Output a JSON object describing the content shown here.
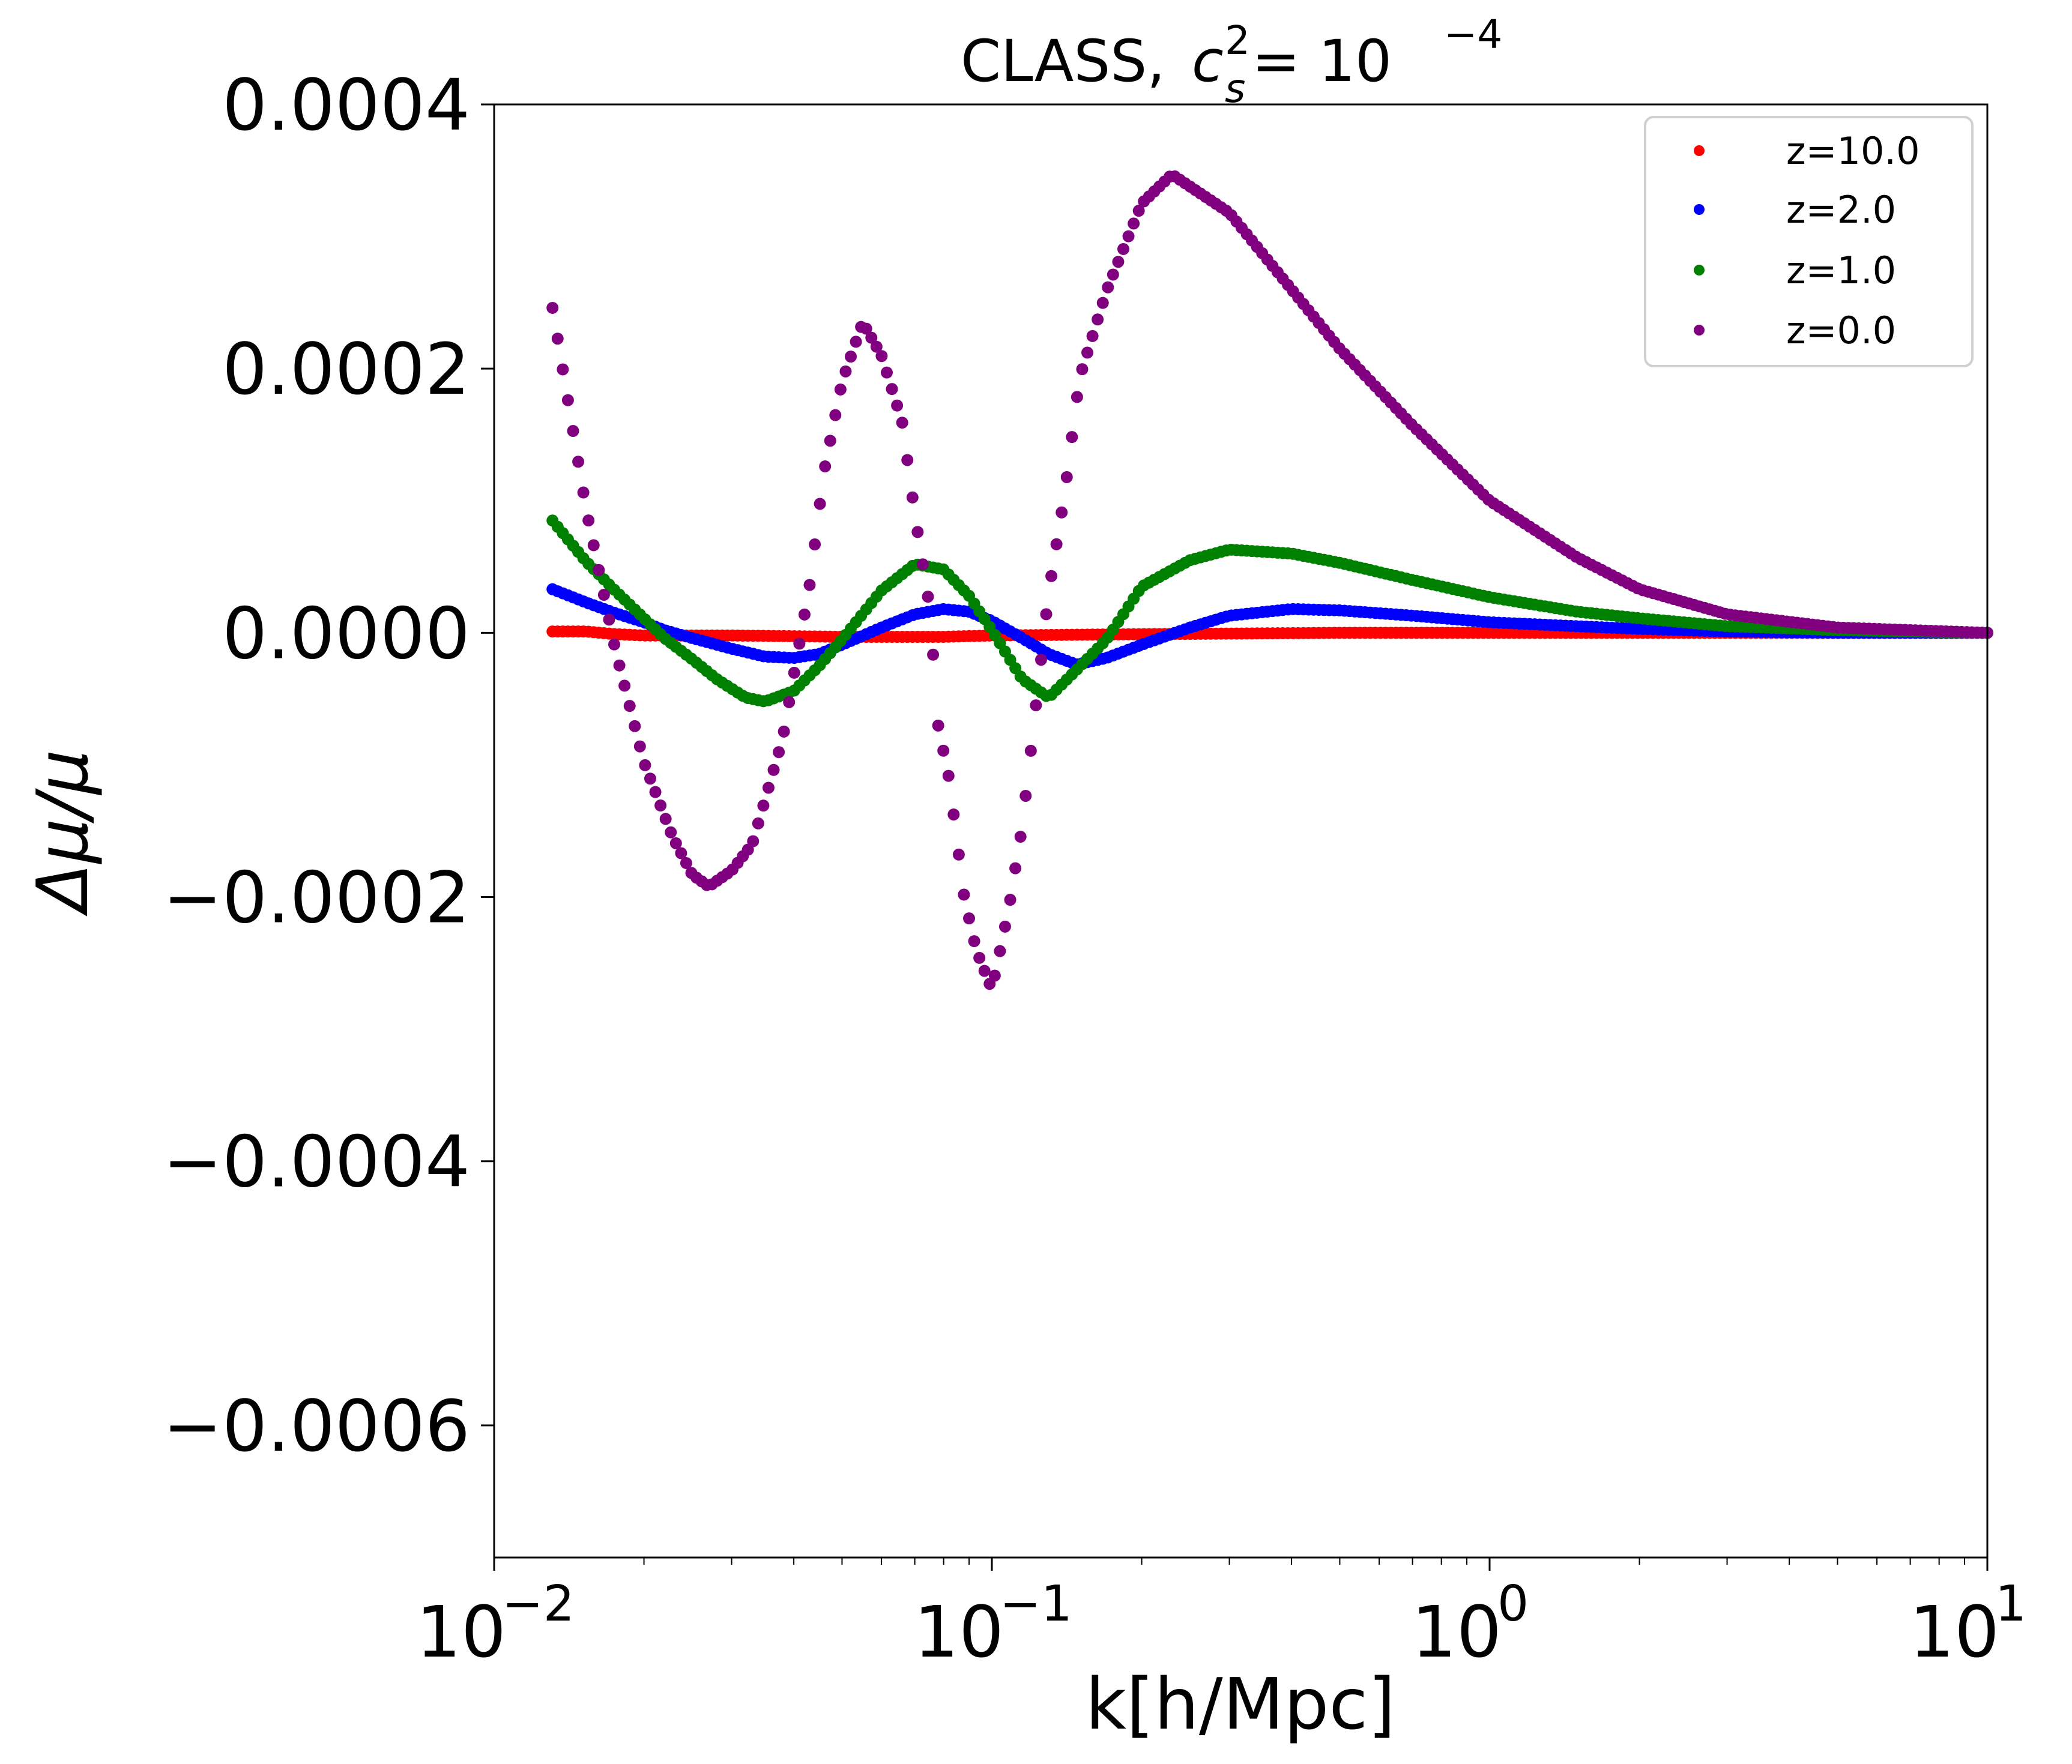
{
  "chart_data": {
    "type": "scatter",
    "title": "CLASS, c_s^2 = 10^-4",
    "title_parts": {
      "prefix": "CLASS, ",
      "symbol": "c",
      "subscript": "s",
      "superscript": "2",
      "equals": " = 10",
      "exponent": "−4"
    },
    "xlabel": "k[h/Mpc]",
    "ylabel": "Δμ/μ",
    "xscale": "log",
    "xlim": [
      0.01,
      10
    ],
    "ylim": [
      -0.0007,
      0.0004
    ],
    "x_ticks": [
      {
        "value": 0.01,
        "base": "10",
        "exp": "−2"
      },
      {
        "value": 0.1,
        "base": "10",
        "exp": "−1"
      },
      {
        "value": 1,
        "base": "10",
        "exp": "0"
      },
      {
        "value": 10,
        "base": "10",
        "exp": "1"
      }
    ],
    "y_ticks": [
      {
        "value": 0.0004,
        "label": "0.0004"
      },
      {
        "value": 0.0002,
        "label": "0.0002"
      },
      {
        "value": 0.0,
        "label": "0.0000"
      },
      {
        "value": -0.0002,
        "label": "−0.0002"
      },
      {
        "value": -0.0004,
        "label": "−0.0004"
      },
      {
        "value": -0.0006,
        "label": "−0.0006"
      }
    ],
    "grid": false,
    "legend_position": "top-right",
    "series": [
      {
        "name": "z=10.0",
        "color": "#ff0000",
        "points": [
          [
            0.0131,
            1e-06
          ],
          [
            0.0153,
            1e-06
          ],
          [
            0.0175,
            -1e-06
          ],
          [
            0.02,
            -2e-06
          ],
          [
            0.03,
            -2e-06
          ],
          [
            0.05,
            -3e-06
          ],
          [
            0.08,
            -3e-06
          ],
          [
            0.1,
            -2e-06
          ],
          [
            0.2,
            -1e-06
          ],
          [
            0.5,
            0.0
          ],
          [
            1.0,
            0.0
          ],
          [
            3.0,
            0.0
          ],
          [
            10.0,
            0.0
          ]
        ]
      },
      {
        "name": "z=2.0",
        "color": "#0000ff",
        "points": [
          [
            0.0131,
            3.3e-05
          ],
          [
            0.0153,
            2.3e-05
          ],
          [
            0.0175,
            1.5e-05
          ],
          [
            0.02,
            8e-06
          ],
          [
            0.022,
            2e-06
          ],
          [
            0.025,
            -4e-06
          ],
          [
            0.03,
            -1.2e-05
          ],
          [
            0.035,
            -1.8e-05
          ],
          [
            0.04,
            -1.9e-05
          ],
          [
            0.045,
            -1.6e-05
          ],
          [
            0.05,
            -9e-06
          ],
          [
            0.06,
            4e-06
          ],
          [
            0.07,
            1.4e-05
          ],
          [
            0.08,
            1.8e-05
          ],
          [
            0.09,
            1.6e-05
          ],
          [
            0.1,
            9e-06
          ],
          [
            0.115,
            -4e-06
          ],
          [
            0.13,
            -1.6e-05
          ],
          [
            0.148,
            -2.4e-05
          ],
          [
            0.17,
            -1.9e-05
          ],
          [
            0.2,
            -9e-06
          ],
          [
            0.25,
            4e-06
          ],
          [
            0.3,
            1.3e-05
          ],
          [
            0.4,
            1.8e-05
          ],
          [
            0.5,
            1.7e-05
          ],
          [
            0.7,
            1.3e-05
          ],
          [
            1.0,
            8e-06
          ],
          [
            1.5,
            5e-06
          ],
          [
            2.0,
            3e-06
          ],
          [
            3.0,
            1e-06
          ],
          [
            5.0,
            0.0
          ],
          [
            10.0,
            0.0
          ]
        ]
      },
      {
        "name": "z=1.0",
        "color": "#008000",
        "points": [
          [
            0.0131,
            8.5e-05
          ],
          [
            0.0153,
            5.4e-05
          ],
          [
            0.0175,
            3.2e-05
          ],
          [
            0.02,
            1.1e-05
          ],
          [
            0.022,
            -4e-06
          ],
          [
            0.025,
            -2e-05
          ],
          [
            0.028,
            -3.5e-05
          ],
          [
            0.032,
            -4.9e-05
          ],
          [
            0.035,
            -5.2e-05
          ],
          [
            0.04,
            -4.4e-05
          ],
          [
            0.045,
            -2.5e-05
          ],
          [
            0.05,
            -5e-06
          ],
          [
            0.06,
            3.2e-05
          ],
          [
            0.07,
            5.2e-05
          ],
          [
            0.08,
            4.8e-05
          ],
          [
            0.09,
            2.8e-05
          ],
          [
            0.1,
            2e-06
          ],
          [
            0.115,
            -3.5e-05
          ],
          [
            0.13,
            -4.9e-05
          ],
          [
            0.148,
            -2.8e-05
          ],
          [
            0.17,
            -5e-06
          ],
          [
            0.2,
            3.5e-05
          ],
          [
            0.25,
            5.5e-05
          ],
          [
            0.3,
            6.3e-05
          ],
          [
            0.4,
            6e-05
          ],
          [
            0.5,
            5.3e-05
          ],
          [
            0.7,
            4e-05
          ],
          [
            1.0,
            2.7e-05
          ],
          [
            1.5,
            1.6e-05
          ],
          [
            2.0,
            1.1e-05
          ],
          [
            3.0,
            5e-06
          ],
          [
            5.0,
            2e-06
          ],
          [
            10.0,
            0.0
          ]
        ]
      },
      {
        "name": "z=0.0",
        "color": "#800080",
        "points": [
          [
            0.0131,
            0.000246
          ],
          [
            0.0153,
            9.4e-05
          ],
          [
            0.0175,
            -1.2e-05
          ],
          [
            0.02,
            -9.8e-05
          ],
          [
            0.0228,
            -0.000154
          ],
          [
            0.025,
            -0.000183
          ],
          [
            0.027,
            -0.000192
          ],
          [
            0.03,
            -0.00018
          ],
          [
            0.033,
            -0.00016
          ],
          [
            0.038,
            -8e-05
          ],
          [
            0.04,
            -3.2e-05
          ],
          [
            0.043,
            3.5e-05
          ],
          [
            0.046,
            0.000122
          ],
          [
            0.05,
            0.00019
          ],
          [
            0.055,
            0.000235
          ],
          [
            0.06,
            0.00021
          ],
          [
            0.066,
            0.00016
          ],
          [
            0.07,
            9e-05
          ],
          [
            0.075,
            1.9e-05
          ],
          [
            0.078,
            -7e-05
          ],
          [
            0.082,
            -0.00011
          ],
          [
            0.088,
            -0.0002
          ],
          [
            0.093,
            -0.00024
          ],
          [
            0.1,
            -0.00027
          ],
          [
            0.108,
            -0.00021
          ],
          [
            0.115,
            -0.000147
          ],
          [
            0.12,
            -8.6e-05
          ],
          [
            0.13,
            3e-05
          ],
          [
            0.14,
            0.000105
          ],
          [
            0.15,
            0.000193
          ],
          [
            0.17,
            0.000259
          ],
          [
            0.2,
            0.000325
          ],
          [
            0.23,
            0.000347
          ],
          [
            0.3,
            0.000318
          ],
          [
            0.4,
            0.00026
          ],
          [
            0.5,
            0.000215
          ],
          [
            0.7,
            0.000157
          ],
          [
            1.0,
            0.0001
          ],
          [
            1.5,
            5.7e-05
          ],
          [
            2.0,
            3.3e-05
          ],
          [
            3.0,
            1.4e-05
          ],
          [
            5.0,
            4e-06
          ],
          [
            10.0,
            0.0
          ]
        ]
      }
    ]
  }
}
